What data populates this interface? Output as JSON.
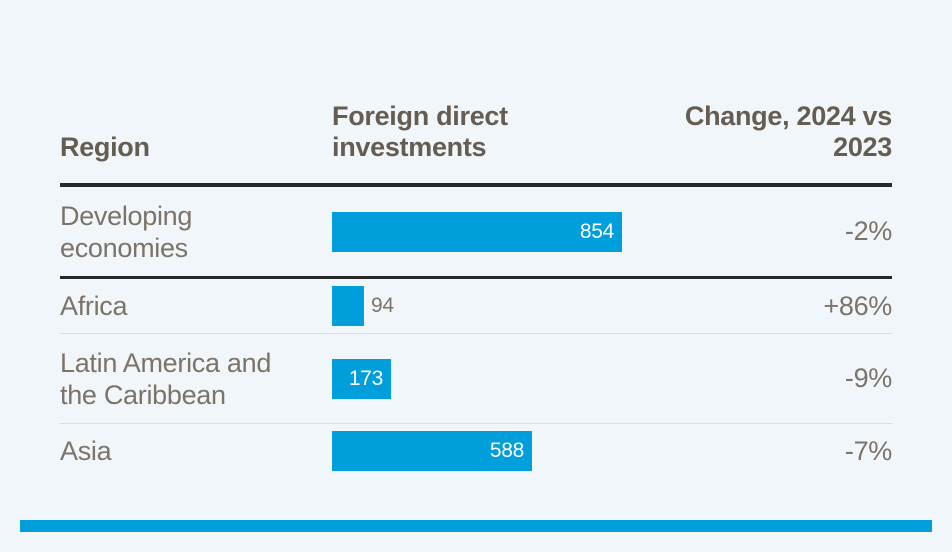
{
  "colors": {
    "background": "#f0f6fa",
    "bar": "#009edb",
    "accent_stripe": "#009edb",
    "header_text": "#665d52",
    "body_text": "#7c7369",
    "bar_value_text": "#ffffff",
    "heavy_rule": "#29292a",
    "light_rule": "#d9dee2"
  },
  "table": {
    "columns": [
      {
        "key": "region",
        "label": "Region"
      },
      {
        "key": "fdi",
        "label": "Foreign direct investments"
      },
      {
        "key": "change",
        "label": "Change, 2024 vs 2023"
      }
    ],
    "rows": [
      {
        "region": "Developing economies",
        "value": 854,
        "change": "-2%",
        "value_label_position": "inside",
        "separator_after": "heavy"
      },
      {
        "region": "Africa",
        "value": 94,
        "change": "+86%",
        "value_label_position": "outside",
        "separator_after": "light"
      },
      {
        "region": "Latin America and the Caribbean",
        "value": 173,
        "change": "-9%",
        "value_label_position": "inside",
        "separator_after": "light"
      },
      {
        "region": "Asia",
        "value": 588,
        "change": "-7%",
        "value_label_position": "none_separator_fix",
        "separator_after": "none"
      }
    ]
  },
  "chart_data": {
    "type": "bar",
    "orientation": "horizontal",
    "title": "",
    "categories": [
      "Developing economies",
      "Africa",
      "Latin America and the Caribbean",
      "Asia"
    ],
    "series": [
      {
        "name": "Foreign direct investments",
        "values": [
          854,
          94,
          173,
          588
        ]
      },
      {
        "name": "Change, 2024 vs 2023",
        "values": [
          "-2%",
          "+86%",
          "-9%",
          "-7%"
        ]
      }
    ],
    "value_labels": true,
    "xlim": [
      0,
      854
    ],
    "grid": false,
    "legend": false
  }
}
